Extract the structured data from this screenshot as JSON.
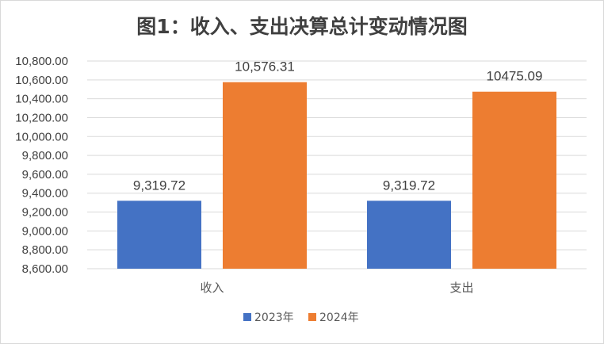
{
  "chart_data": {
    "type": "bar",
    "title": "图1：收入、支出决算总计变动情况图",
    "categories": [
      "收入",
      "支出"
    ],
    "series": [
      {
        "name": "2023年",
        "values": [
          9319.72,
          9319.72
        ],
        "labels": [
          "9,319.72",
          "9,319.72"
        ],
        "color": "#4472c4"
      },
      {
        "name": "2024年",
        "values": [
          10576.31,
          10475.09
        ],
        "labels": [
          "10,576.31",
          "10475.09"
        ],
        "color": "#ed7d31"
      }
    ],
    "ylim": [
      8600,
      10800
    ],
    "yticks": [
      8600,
      8800,
      9000,
      9200,
      9400,
      9600,
      9800,
      10000,
      10200,
      10400,
      10600,
      10800
    ],
    "ytick_labels": [
      "8,600.00",
      "8,800.00",
      "9,000.00",
      "9,200.00",
      "9,400.00",
      "9,600.00",
      "9,800.00",
      "10,000.00",
      "10,200.00",
      "10,400.00",
      "10,600.00",
      "10,800.00"
    ],
    "grid": true,
    "legend": "bottom",
    "grid_color": "#d9d9d9"
  }
}
